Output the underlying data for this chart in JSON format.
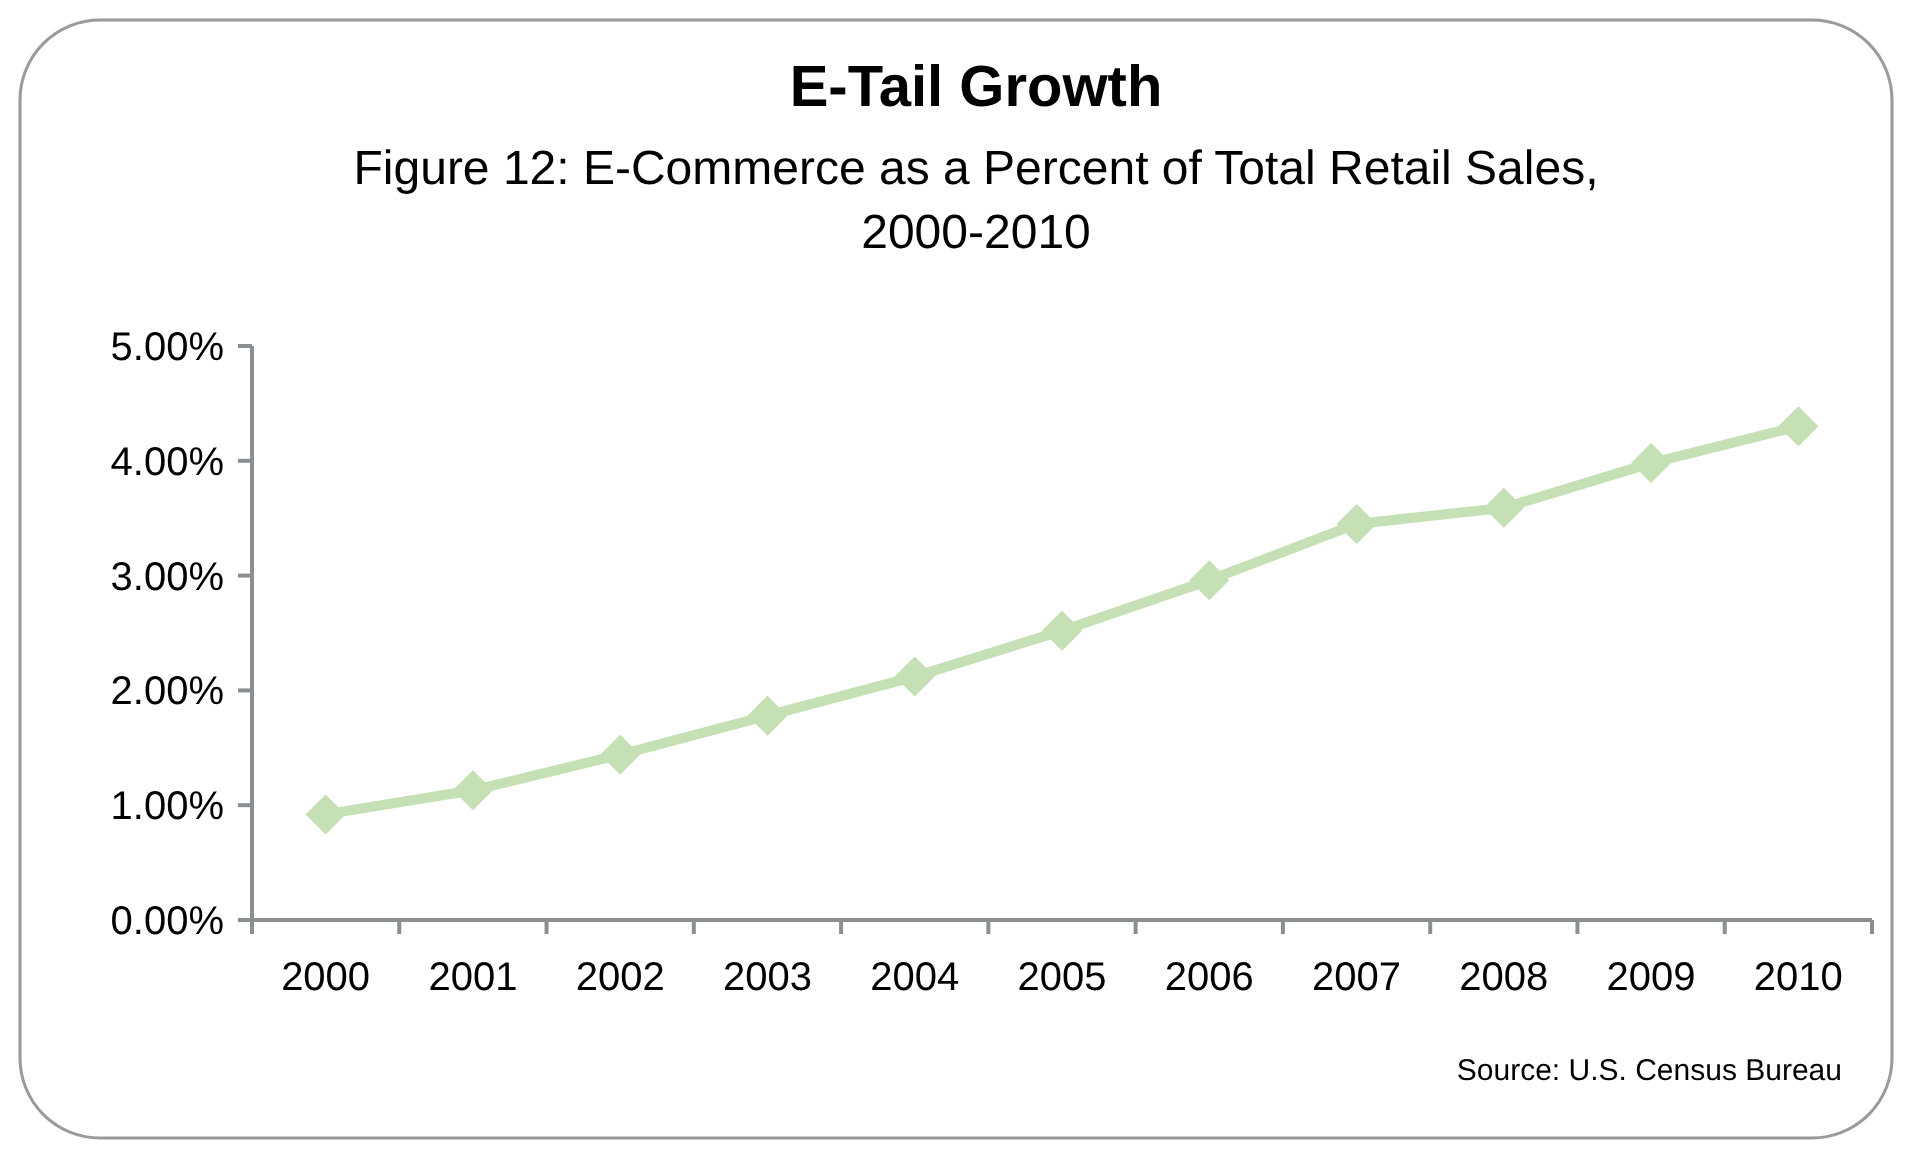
{
  "chart_data": {
    "type": "line",
    "title": "E-Tail Growth",
    "subtitle": "Figure 12: E-Commerce as a Percent of Total Retail Sales,\n2000-2010",
    "categories": [
      "2000",
      "2001",
      "2002",
      "2003",
      "2004",
      "2005",
      "2006",
      "2007",
      "2008",
      "2009",
      "2010"
    ],
    "series": [
      {
        "color": "#c5e0b4",
        "values": [
          0.92,
          1.13,
          1.44,
          1.78,
          2.12,
          2.52,
          2.96,
          3.45,
          3.59,
          3.98,
          4.3
        ]
      }
    ],
    "ylim": [
      0,
      5
    ],
    "yticks": [
      {
        "value": 0,
        "label": "0.00%"
      },
      {
        "value": 1,
        "label": "1.00%"
      },
      {
        "value": 2,
        "label": "2.00%"
      },
      {
        "value": 3,
        "label": "3.00%"
      },
      {
        "value": 4,
        "label": "4.00%"
      },
      {
        "value": 5,
        "label": "5.00%"
      }
    ],
    "marker": "diamond",
    "line_style": "solid",
    "grid": false,
    "annotations": [
      "Source: U.S. Census Bureau"
    ]
  }
}
